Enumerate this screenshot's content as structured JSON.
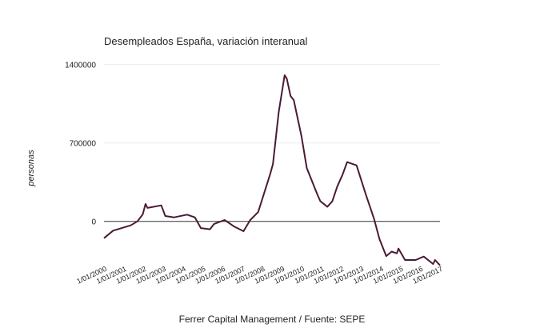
{
  "chart_data": {
    "type": "line",
    "title": "Desempleados España, variación interanual",
    "xlabel": "Ferrer Capital Management / Fuente: SEPE",
    "ylabel": "personas",
    "ylim": [
      -500000,
      1400000
    ],
    "yticks": [
      0,
      700000,
      1400000
    ],
    "ytick_labels": [
      "0",
      "700000",
      "1400000"
    ],
    "xlim": [
      2000,
      2017
    ],
    "xtick_labels": [
      "1/01/2000",
      "1/01/2001",
      "1/01/2002",
      "1/01/2003",
      "1/01/2004",
      "1/01/2005",
      "1/01/2006",
      "1/01/2007",
      "1/01/2008",
      "1/01/2009",
      "1/01/2010",
      "1/01/2011",
      "1/01/2012",
      "1/01/2013",
      "1/01/2014",
      "1/01/2015",
      "1/01/2016",
      "1/01/2017"
    ],
    "grid": true,
    "line_color": "#4a1a35",
    "series": [
      {
        "name": "Variación interanual",
        "x": [
          2000.0,
          2000.46,
          2001.35,
          2001.69,
          2001.96,
          2002.1,
          2002.2,
          2002.9,
          2003.1,
          2003.55,
          2004.2,
          2004.6,
          2004.9,
          2005.36,
          2005.56,
          2006.1,
          2006.6,
          2007.06,
          2007.4,
          2007.8,
          2008.1,
          2008.4,
          2008.55,
          2008.84,
          2009.14,
          2009.25,
          2009.44,
          2009.6,
          2009.99,
          2010.26,
          2010.8,
          2010.95,
          2011.3,
          2011.55,
          2011.8,
          2012.07,
          2012.3,
          2012.78,
          2013.25,
          2013.66,
          2013.93,
          2014.28,
          2014.55,
          2014.82,
          2014.9,
          2015.23,
          2015.77,
          2016.18,
          2016.65,
          2016.75,
          2017.0
        ],
        "y": [
          -150000,
          -83000,
          -36000,
          0,
          62000,
          155000,
          120000,
          143000,
          48000,
          36000,
          60000,
          36000,
          -60000,
          -71000,
          -24000,
          12000,
          -48000,
          -88000,
          12000,
          83000,
          250000,
          417000,
          512000,
          976000,
          1305000,
          1274000,
          1119000,
          1083000,
          762000,
          476000,
          238000,
          179000,
          131000,
          179000,
          310000,
          417000,
          529000,
          500000,
          238000,
          24000,
          -155000,
          -310000,
          -270000,
          -286000,
          -243000,
          -345000,
          -345000,
          -314000,
          -381000,
          -345000,
          -393000
        ]
      }
    ]
  }
}
